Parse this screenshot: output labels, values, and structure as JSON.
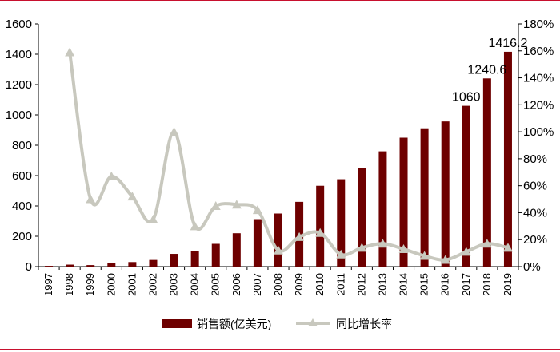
{
  "chart_data": {
    "type": "bar+line",
    "categories": [
      "1997",
      "1998",
      "1999",
      "2000",
      "2001",
      "2002",
      "2003",
      "2004",
      "2005",
      "2006",
      "2007",
      "2008",
      "2009",
      "2010",
      "2011",
      "2012",
      "2013",
      "2014",
      "2015",
      "2016",
      "2017",
      "2018",
      "2019"
    ],
    "series": [
      {
        "name": "销售额(亿美元)",
        "type": "bar",
        "axis": "left",
        "color": "#6e0000",
        "values": [
          5,
          13,
          10,
          22,
          30,
          44,
          84,
          104,
          150,
          220,
          313,
          350,
          427,
          533,
          576,
          651,
          760,
          850,
          912,
          957,
          1060,
          1240.6,
          1416.2
        ]
      },
      {
        "name": "同比增长率",
        "type": "line",
        "axis": "right",
        "color": "#c8c8be",
        "values": [
          null,
          1.59,
          0.5,
          0.67,
          0.52,
          0.35,
          1.0,
          0.3,
          0.45,
          0.46,
          0.42,
          0.12,
          0.22,
          0.25,
          0.09,
          0.14,
          0.17,
          0.13,
          0.08,
          0.05,
          0.11,
          0.17,
          0.14
        ]
      }
    ],
    "data_labels": [
      {
        "category": "2017",
        "text": "1060"
      },
      {
        "category": "2018",
        "text": "1240.6"
      },
      {
        "category": "2019",
        "text": "1416.2"
      }
    ],
    "ylim_left": [
      0,
      1600
    ],
    "yticks_left": [
      "0",
      "200",
      "400",
      "600",
      "800",
      "1000",
      "1200",
      "1400",
      "1600"
    ],
    "ylim_right": [
      0,
      1.8
    ],
    "yticks_right": [
      "0%",
      "20%",
      "40%",
      "60%",
      "80%",
      "100%",
      "120%",
      "140%",
      "160%",
      "180%"
    ],
    "legend_position": "bottom",
    "grid": false
  }
}
